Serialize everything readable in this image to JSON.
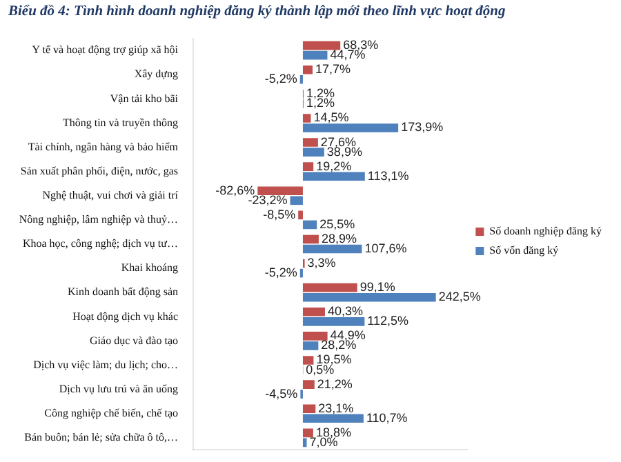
{
  "chart_data": {
    "type": "bar",
    "orientation": "horizontal",
    "title": "Biểu đồ 4: Tình hình doanh nghiệp đăng ký thành lập mới theo lĩnh vực hoạt động",
    "categories": [
      "Y tế và hoạt động trợ giúp xã hội",
      "Xây dựng",
      "Vận tải kho bãi",
      "Thông tin và truyền thông",
      "Tài chính, ngân hàng và bảo hiểm",
      "Sản xuất phân phối, điện, nước, gas",
      "Nghệ thuật, vui chơi và giải trí",
      "Nông nghiệp, lâm nghiệp và thuỷ…",
      "Khoa học, công nghệ; dịch vụ tư…",
      "Khai khoáng",
      "Kinh doanh bất động sản",
      "Hoạt động dịch vụ khác",
      "Giáo dục và đào tạo",
      "Dịch vụ việc làm; du lịch; cho…",
      "Dịch vụ lưu trú và ăn uống",
      "Công nghiệp chế biến, chế tạo",
      "Bán buôn; bán lẻ; sửa chữa ô tô,…"
    ],
    "series": [
      {
        "name": "Số doanh nghiệp đăng ký",
        "color": "#c0504d",
        "values": [
          68.3,
          17.7,
          1.2,
          14.5,
          27.6,
          19.2,
          -82.6,
          -8.5,
          28.9,
          3.3,
          99.1,
          40.3,
          44.9,
          19.5,
          21.2,
          23.1,
          18.8
        ],
        "value_labels": [
          "68,3%",
          "17,7%",
          "1,2%",
          "14,5%",
          "27,6%",
          "19,2%",
          "-82,6%",
          "-8,5%",
          "28,9%",
          "3,3%",
          "99,1%",
          "40,3%",
          "44,9%",
          "19,5%",
          "21,2%",
          "23,1%",
          "18,8%"
        ]
      },
      {
        "name": "Số vốn đăng ký",
        "color": "#4f81bd",
        "values": [
          44.7,
          -5.2,
          1.2,
          173.9,
          38.9,
          113.1,
          -23.2,
          25.5,
          107.6,
          -5.2,
          242.5,
          112.5,
          28.2,
          0.5,
          -4.5,
          110.7,
          7.0
        ],
        "value_labels": [
          "44,7%",
          "-5,2%",
          "1,2%",
          "173,9%",
          "38,9%",
          "113,1%",
          "-23,2%",
          "25,5%",
          "107,6%",
          "-5,2%",
          "242,5%",
          "112,5%",
          "28,2%",
          "0,5%",
          "-4,5%",
          "110,7%",
          "7,0%"
        ]
      }
    ],
    "xlim": [
      -200,
      300
    ],
    "tick_labels": "y",
    "legend": "right"
  }
}
